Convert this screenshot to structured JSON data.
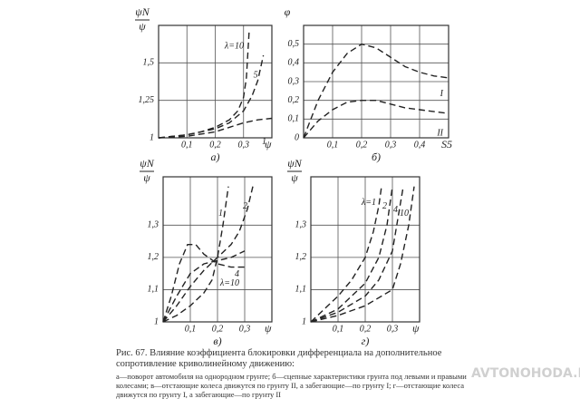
{
  "chart_data": [
    {
      "type": "line",
      "ylabel_top": "ψN",
      "ylabel_bottom": "ψ",
      "xlabel": "ψ",
      "label": "а)",
      "xlim": [
        0,
        0.4
      ],
      "ylim": [
        1,
        1.75
      ],
      "xticks": [
        {
          "value": 0.1,
          "label": "0,1"
        },
        {
          "value": 0.2,
          "label": "0,2"
        },
        {
          "value": 0.3,
          "label": "0,3"
        }
      ],
      "yticks": [
        1,
        {
          "value": 1.25,
          "label": "1,25"
        },
        {
          "value": 1.5,
          "label": "1,5"
        }
      ],
      "grid": true,
      "color": "#222",
      "series": [
        {
          "name": "λ=10",
          "x": [
            0,
            0.05,
            0.1,
            0.15,
            0.2,
            0.25,
            0.28,
            0.3,
            0.31,
            0.32
          ],
          "values": [
            1,
            1.01,
            1.02,
            1.04,
            1.07,
            1.12,
            1.18,
            1.27,
            1.4,
            1.72
          ]
        },
        {
          "name": "5",
          "x": [
            0,
            0.1,
            0.2,
            0.25,
            0.3,
            0.33,
            0.35,
            0.37
          ],
          "values": [
            1,
            1.02,
            1.06,
            1.1,
            1.18,
            1.28,
            1.38,
            1.55
          ]
        },
        {
          "name": "1",
          "x": [
            0,
            0.1,
            0.2,
            0.25,
            0.3,
            0.35,
            0.4
          ],
          "values": [
            1,
            1.01,
            1.04,
            1.07,
            1.1,
            1.12,
            1.13
          ]
        }
      ]
    },
    {
      "type": "line",
      "ylabel_top": "φ",
      "xlabel": "S5",
      "label": "б)",
      "xlim": [
        0,
        0.5
      ],
      "ylim": [
        0,
        0.6
      ],
      "xticks": [
        {
          "value": 0.1,
          "label": "0,1"
        },
        {
          "value": 0.2,
          "label": "0,2"
        },
        {
          "value": 0.3,
          "label": "0,3"
        },
        {
          "value": 0.4,
          "label": "0,4"
        }
      ],
      "yticks": [
        0,
        {
          "value": 0.1,
          "label": "0,1"
        },
        {
          "value": 0.2,
          "label": "0,2"
        },
        {
          "value": 0.3,
          "label": "0,3"
        },
        {
          "value": 0.4,
          "label": "0,4"
        },
        {
          "value": 0.5,
          "label": "0,5"
        }
      ],
      "grid": true,
      "color": "#222",
      "series": [
        {
          "name": "I",
          "x": [
            0,
            0.05,
            0.1,
            0.15,
            0.2,
            0.25,
            0.3,
            0.35,
            0.4,
            0.45,
            0.5
          ],
          "values": [
            0,
            0.2,
            0.35,
            0.45,
            0.5,
            0.48,
            0.43,
            0.38,
            0.35,
            0.33,
            0.32
          ]
        },
        {
          "name": "II",
          "x": [
            0,
            0.05,
            0.1,
            0.15,
            0.2,
            0.25,
            0.3,
            0.35,
            0.4,
            0.45,
            0.5
          ],
          "values": [
            0,
            0.09,
            0.15,
            0.19,
            0.2,
            0.2,
            0.18,
            0.16,
            0.15,
            0.14,
            0.13
          ]
        }
      ]
    },
    {
      "type": "line",
      "ylabel_top": "ψN",
      "ylabel_bottom": "ψ",
      "xlabel": "ψ",
      "label": "в)",
      "xlim": [
        0,
        0.4
      ],
      "ylim": [
        1,
        1.45
      ],
      "xticks": [
        {
          "value": 0.1,
          "label": "0,1"
        },
        {
          "value": 0.2,
          "label": "0,2"
        },
        {
          "value": 0.3,
          "label": "0,3"
        }
      ],
      "yticks": [
        1,
        {
          "value": 1.1,
          "label": "1,1"
        },
        {
          "value": 1.2,
          "label": "1,2"
        },
        {
          "value": 1.3,
          "label": "1,3"
        }
      ],
      "grid": true,
      "color": "#222",
      "series": [
        {
          "name": "λ=10",
          "x": [
            0,
            0.03,
            0.06,
            0.09,
            0.12,
            0.15,
            0.2,
            0.25,
            0.3
          ],
          "values": [
            1,
            1.08,
            1.18,
            1.24,
            1.24,
            1.21,
            1.18,
            1.17,
            1.17
          ]
        },
        {
          "name": "2",
          "x": [
            0,
            0.05,
            0.1,
            0.15,
            0.2,
            0.25,
            0.28,
            0.31,
            0.33
          ],
          "values": [
            1,
            1.05,
            1.11,
            1.16,
            1.2,
            1.24,
            1.28,
            1.35,
            1.42
          ]
        },
        {
          "name": "4",
          "x": [
            0,
            0.05,
            0.1,
            0.15,
            0.2,
            0.25,
            0.3
          ],
          "values": [
            1,
            1.08,
            1.15,
            1.18,
            1.19,
            1.2,
            1.22
          ]
        },
        {
          "name": "1",
          "x": [
            0,
            0.05,
            0.1,
            0.15,
            0.18,
            0.2,
            0.22,
            0.24
          ],
          "values": [
            1,
            1.02,
            1.05,
            1.09,
            1.13,
            1.2,
            1.3,
            1.42
          ]
        }
      ]
    },
    {
      "type": "line",
      "ylabel_top": "ψN",
      "ylabel_bottom": "ψ",
      "xlabel": "ψ",
      "label": "г)",
      "xlim": [
        0,
        0.4
      ],
      "ylim": [
        1,
        1.45
      ],
      "xticks": [
        {
          "value": 0.1,
          "label": "0,1"
        },
        {
          "value": 0.2,
          "label": "0,2"
        },
        {
          "value": 0.3,
          "label": "0,3"
        }
      ],
      "yticks": [
        1,
        {
          "value": 1.1,
          "label": "1,1"
        },
        {
          "value": 1.2,
          "label": "1,2"
        },
        {
          "value": 1.3,
          "label": "1,3"
        }
      ],
      "grid": true,
      "color": "#222",
      "series": [
        {
          "name": "λ=1",
          "x": [
            0,
            0.05,
            0.1,
            0.15,
            0.2,
            0.23,
            0.25,
            0.26
          ],
          "values": [
            1,
            1.04,
            1.08,
            1.13,
            1.2,
            1.28,
            1.36,
            1.42
          ]
        },
        {
          "name": "2",
          "x": [
            0,
            0.1,
            0.15,
            0.2,
            0.25,
            0.28,
            0.3
          ],
          "values": [
            1,
            1.04,
            1.08,
            1.12,
            1.2,
            1.3,
            1.42
          ]
        },
        {
          "name": "4",
          "x": [
            0,
            0.1,
            0.2,
            0.25,
            0.3,
            0.32,
            0.34
          ],
          "values": [
            1,
            1.03,
            1.08,
            1.13,
            1.22,
            1.32,
            1.42
          ]
        },
        {
          "name": "10",
          "x": [
            0,
            0.1,
            0.2,
            0.3,
            0.33,
            0.36,
            0.38
          ],
          "values": [
            1,
            1.02,
            1.05,
            1.1,
            1.18,
            1.3,
            1.42
          ]
        }
      ]
    }
  ],
  "caption": {
    "title": "Рис. 67. Влияние коэффициента блокировки дифференциала на дополнительное сопротивление криволинейному движению:",
    "text": "а—поворот автомобиля на однородном грунте; б—сцепные характеристики грунта под левыми и правыми колесами; в—отстающие колеса движутся по грунту II, а забегающие—по грунту I; г—отстающие колеса движутся по грунту I, а забегающие—по грунту II"
  },
  "watermark": "AVTONOHODA.NET"
}
